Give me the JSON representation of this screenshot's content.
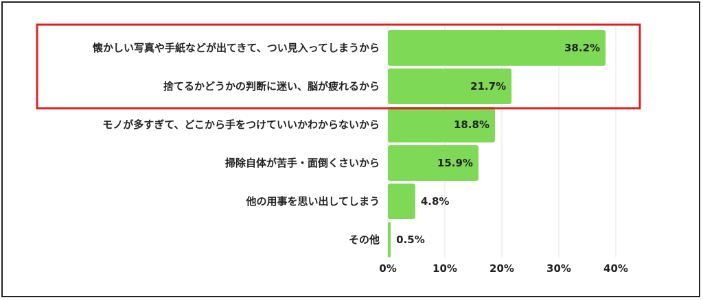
{
  "chart_data": {
    "type": "bar",
    "orientation": "horizontal",
    "categories": [
      "懐かしい写真や手紙などが出てきて、つい見入ってしまうから",
      "捨てるかどうかの判断に迷い、脳が疲れるから",
      "モノが多すぎて、どこから手をつけていいかわからないから",
      "掃除自体が苦手・面倒くさいから",
      "他の用事を思い出してしまう",
      "その他"
    ],
    "values": [
      38.2,
      21.7,
      18.8,
      15.9,
      4.8,
      0.5
    ],
    "value_labels": [
      "38.2%",
      "21.7%",
      "18.8%",
      "15.9%",
      "4.8%",
      "0.5%"
    ],
    "xlim": [
      0,
      40
    ],
    "xticks": [
      0,
      10,
      20,
      30,
      40
    ],
    "xtick_labels": [
      "0%",
      "10%",
      "20%",
      "30%",
      "40%"
    ],
    "grid": true,
    "legend": "none",
    "bar_color": "#7ed957",
    "highlight": {
      "categories": [
        0,
        1
      ],
      "color": "#e02020"
    }
  }
}
